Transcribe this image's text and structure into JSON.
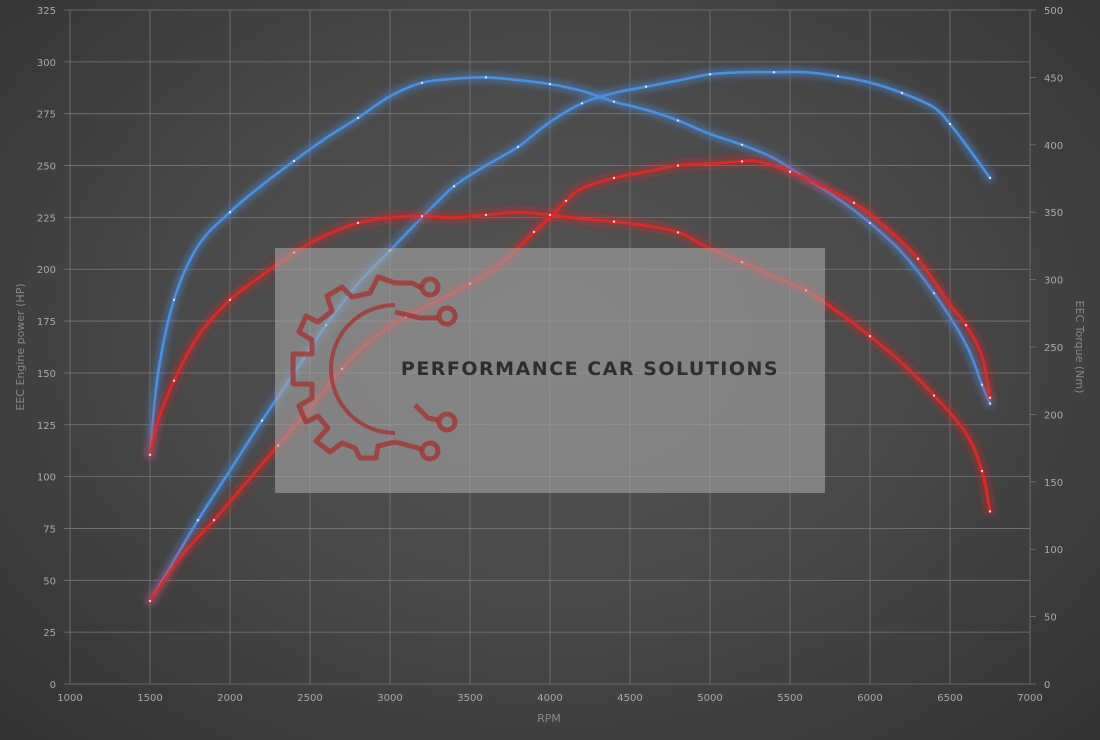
{
  "colors": {
    "stock": "#4a8fe0",
    "tuned": "#e02828",
    "grid": "#777777",
    "tick_text": "#aaaaaa",
    "overlay": "#a8a8a8",
    "logo": "#a33030"
  },
  "watermark": {
    "text": "PERFORMANCE CAR SOLUTIONS",
    "logo_icon": "gear-circuit-logo-icon"
  },
  "chart_data": {
    "type": "line",
    "xlabel": "RPM",
    "ylabel_left": "EEC Engine power (HP)",
    "ylabel_right": "EEC Torque (Nm)",
    "xlim": [
      1000,
      7000
    ],
    "ylim_left": [
      0,
      325
    ],
    "ylim_right": [
      0,
      500
    ],
    "x_ticks": [
      1000,
      1500,
      2000,
      2500,
      3000,
      3500,
      4000,
      4500,
      5000,
      5500,
      6000,
      6500,
      7000
    ],
    "y_left_ticks": [
      0,
      25,
      50,
      75,
      100,
      125,
      150,
      175,
      200,
      225,
      250,
      275,
      300,
      325
    ],
    "y_right_ticks": [
      0,
      50,
      100,
      150,
      200,
      250,
      300,
      350,
      400,
      450,
      500
    ],
    "grid": true,
    "series": [
      {
        "key": "stock_power",
        "axis": "left",
        "color": "#4a8fe0",
        "points": [
          [
            1500,
            40
          ],
          [
            1600,
            53
          ],
          [
            1800,
            79
          ],
          [
            2000,
            103
          ],
          [
            2200,
            127
          ],
          [
            2400,
            150
          ],
          [
            2600,
            173
          ],
          [
            2800,
            193
          ],
          [
            3000,
            209
          ],
          [
            3200,
            225
          ],
          [
            3400,
            240
          ],
          [
            3600,
            250
          ],
          [
            3800,
            259
          ],
          [
            4000,
            271
          ],
          [
            4200,
            280
          ],
          [
            4400,
            285
          ],
          [
            4600,
            288
          ],
          [
            4800,
            291
          ],
          [
            5000,
            294
          ],
          [
            5200,
            295
          ],
          [
            5400,
            295
          ],
          [
            5600,
            295
          ],
          [
            5800,
            293
          ],
          [
            6000,
            290
          ],
          [
            6200,
            285
          ],
          [
            6400,
            278
          ],
          [
            6500,
            270
          ],
          [
            6600,
            260
          ],
          [
            6750,
            244
          ]
        ]
      },
      {
        "key": "stock_torque",
        "axis": "right",
        "color": "#4a8fe0",
        "points": [
          [
            1500,
            170
          ],
          [
            1550,
            230
          ],
          [
            1650,
            285
          ],
          [
            1800,
            325
          ],
          [
            2000,
            350
          ],
          [
            2200,
            370
          ],
          [
            2400,
            388
          ],
          [
            2600,
            405
          ],
          [
            2800,
            420
          ],
          [
            3000,
            436
          ],
          [
            3200,
            446
          ],
          [
            3400,
            449
          ],
          [
            3600,
            450
          ],
          [
            3800,
            448
          ],
          [
            4000,
            445
          ],
          [
            4200,
            440
          ],
          [
            4400,
            432
          ],
          [
            4600,
            426
          ],
          [
            4800,
            418
          ],
          [
            5000,
            408
          ],
          [
            5200,
            400
          ],
          [
            5400,
            390
          ],
          [
            5600,
            375
          ],
          [
            5800,
            360
          ],
          [
            6000,
            342
          ],
          [
            6200,
            320
          ],
          [
            6400,
            290
          ],
          [
            6600,
            252
          ],
          [
            6700,
            222
          ],
          [
            6750,
            208
          ]
        ]
      },
      {
        "key": "tuned_power",
        "axis": "left",
        "color": "#e02828",
        "points": [
          [
            1500,
            40
          ],
          [
            1700,
            62
          ],
          [
            1900,
            79
          ],
          [
            2100,
            97
          ],
          [
            2300,
            115
          ],
          [
            2500,
            133
          ],
          [
            2700,
            152
          ],
          [
            2900,
            167
          ],
          [
            3100,
            177
          ],
          [
            3300,
            185
          ],
          [
            3500,
            193
          ],
          [
            3700,
            203
          ],
          [
            3900,
            218
          ],
          [
            4000,
            225
          ],
          [
            4100,
            233
          ],
          [
            4200,
            239
          ],
          [
            4400,
            244
          ],
          [
            4600,
            247
          ],
          [
            4800,
            250
          ],
          [
            5000,
            251
          ],
          [
            5200,
            252
          ],
          [
            5300,
            252
          ],
          [
            5500,
            247
          ],
          [
            5700,
            240
          ],
          [
            5900,
            232
          ],
          [
            6100,
            220
          ],
          [
            6300,
            205
          ],
          [
            6500,
            183
          ],
          [
            6600,
            173
          ],
          [
            6700,
            158
          ],
          [
            6750,
            138
          ]
        ]
      },
      {
        "key": "tuned_torque",
        "axis": "right",
        "color": "#e02828",
        "points": [
          [
            1500,
            170
          ],
          [
            1550,
            195
          ],
          [
            1650,
            225
          ],
          [
            1800,
            258
          ],
          [
            2000,
            285
          ],
          [
            2200,
            303
          ],
          [
            2400,
            320
          ],
          [
            2600,
            333
          ],
          [
            2800,
            342
          ],
          [
            3000,
            346
          ],
          [
            3200,
            347
          ],
          [
            3400,
            346
          ],
          [
            3600,
            348
          ],
          [
            3800,
            350
          ],
          [
            4000,
            348
          ],
          [
            4200,
            345
          ],
          [
            4400,
            343
          ],
          [
            4600,
            340
          ],
          [
            4800,
            335
          ],
          [
            5000,
            323
          ],
          [
            5200,
            313
          ],
          [
            5400,
            302
          ],
          [
            5600,
            292
          ],
          [
            5800,
            276
          ],
          [
            6000,
            258
          ],
          [
            6200,
            238
          ],
          [
            6400,
            214
          ],
          [
            6600,
            186
          ],
          [
            6700,
            158
          ],
          [
            6750,
            128
          ]
        ]
      }
    ]
  }
}
